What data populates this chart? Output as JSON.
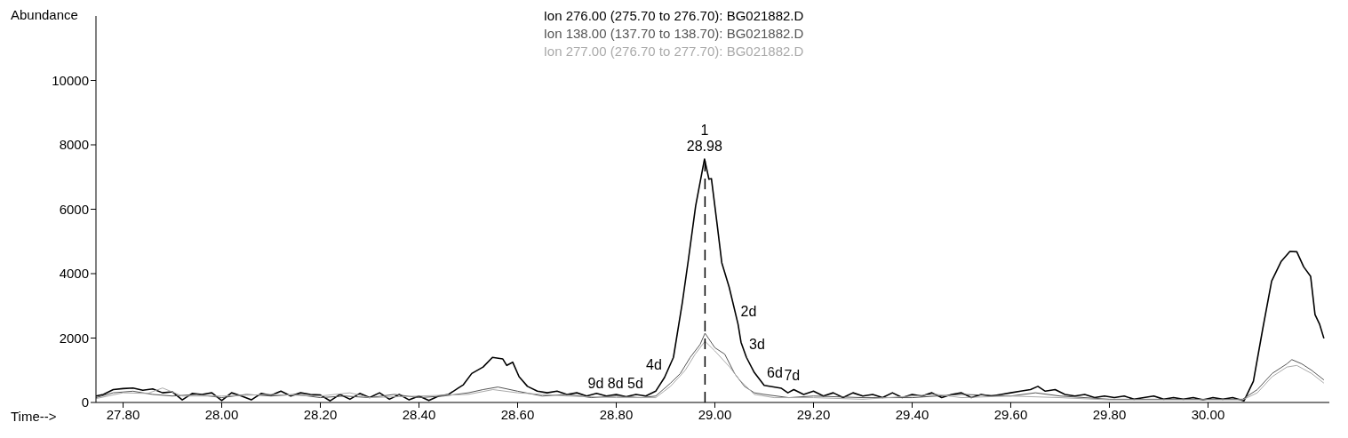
{
  "chart_data": {
    "type": "line",
    "ylabel": "Abundance",
    "xlabel": "Time-->",
    "xlim": [
      27.745,
      30.246
    ],
    "ylim": [
      0,
      12000
    ],
    "xticks": [
      {
        "value": 27.8,
        "label": "27.80"
      },
      {
        "value": 28,
        "label": "28.00"
      },
      {
        "value": 28.2,
        "label": "28.20"
      },
      {
        "value": 28.4,
        "label": "28.40"
      },
      {
        "value": 28.6,
        "label": "28.60"
      },
      {
        "value": 28.8,
        "label": "28.80"
      },
      {
        "value": 29,
        "label": "29.00"
      },
      {
        "value": 29.2,
        "label": "29.20"
      },
      {
        "value": 29.4,
        "label": "29.40"
      },
      {
        "value": 29.6,
        "label": "29.60"
      },
      {
        "value": 29.8,
        "label": "29.80"
      },
      {
        "value": 30,
        "label": "30.00"
      }
    ],
    "yticks": [
      0,
      2000,
      4000,
      6000,
      8000,
      10000
    ],
    "grid": false,
    "legend": "top",
    "marker": "none",
    "line_style": "solid",
    "series": [
      {
        "name": "Ion 276.00 (275.70 to 276.70): BG021882.D",
        "color": "#000000",
        "x": [
          27.745,
          27.76,
          27.78,
          27.8,
          27.82,
          27.84,
          27.86,
          27.88,
          27.9,
          27.92,
          27.94,
          27.96,
          27.98,
          28,
          28.02,
          28.04,
          28.06,
          28.08,
          28.1,
          28.12,
          28.14,
          28.16,
          28.18,
          28.2,
          28.22,
          28.24,
          28.26,
          28.28,
          28.3,
          28.32,
          28.34,
          28.36,
          28.38,
          28.4,
          28.42,
          28.44,
          28.46,
          28.48,
          28.49,
          28.507,
          28.53,
          28.549,
          28.57,
          28.578,
          28.59,
          28.603,
          28.62,
          28.64,
          28.66,
          28.68,
          28.7,
          28.72,
          28.74,
          28.76,
          28.78,
          28.8,
          28.82,
          28.84,
          28.86,
          28.88,
          28.898,
          28.916,
          28.934,
          28.946,
          28.961,
          28.979,
          28.988,
          28.993,
          29.005,
          29.014,
          29.029,
          29.047,
          29.053,
          29.064,
          29.08,
          29.1,
          29.135,
          29.148,
          29.16,
          29.18,
          29.2,
          29.22,
          29.24,
          29.26,
          29.28,
          29.3,
          29.32,
          29.34,
          29.36,
          29.38,
          29.4,
          29.42,
          29.44,
          29.46,
          29.48,
          29.5,
          29.52,
          29.54,
          29.56,
          29.58,
          29.6,
          29.62,
          29.64,
          29.655,
          29.67,
          29.69,
          29.71,
          29.73,
          29.75,
          29.77,
          29.79,
          29.81,
          29.83,
          29.85,
          29.87,
          29.89,
          29.91,
          29.93,
          29.95,
          29.97,
          29.99,
          30.01,
          30.03,
          30.05,
          30.073,
          30.092,
          30.111,
          30.129,
          30.148,
          30.166,
          30.18,
          30.194,
          30.208,
          30.217,
          30.226,
          30.235
        ],
        "values": [
          200,
          250,
          400,
          430,
          450,
          380,
          420,
          300,
          330,
          80,
          280,
          250,
          300,
          60,
          300,
          200,
          80,
          280,
          220,
          350,
          200,
          300,
          250,
          230,
          50,
          250,
          100,
          280,
          150,
          300,
          100,
          250,
          80,
          200,
          60,
          200,
          250,
          450,
          550,
          900,
          1100,
          1400,
          1350,
          1150,
          1250,
          800,
          500,
          350,
          300,
          350,
          250,
          300,
          200,
          280,
          200,
          250,
          180,
          250,
          200,
          350,
          780,
          1400,
          3100,
          4400,
          6100,
          7560,
          6930,
          6950,
          5480,
          4340,
          3580,
          2430,
          1870,
          1400,
          930,
          530,
          440,
          300,
          400,
          250,
          350,
          200,
          300,
          150,
          300,
          200,
          250,
          150,
          300,
          150,
          250,
          200,
          300,
          150,
          250,
          300,
          150,
          250,
          200,
          250,
          300,
          350,
          400,
          500,
          350,
          400,
          250,
          200,
          250,
          150,
          200,
          150,
          200,
          100,
          150,
          200,
          100,
          150,
          100,
          150,
          80,
          150,
          100,
          150,
          50,
          660,
          2290,
          3770,
          4370,
          4690,
          4680,
          4210,
          3920,
          2730,
          2440,
          1990
        ]
      },
      {
        "name": "Ion 138.00 (137.70 to 138.70): BG021882.D",
        "color": "#555555",
        "x": [
          27.745,
          27.78,
          27.82,
          27.86,
          27.9,
          27.95,
          28,
          28.05,
          28.1,
          28.15,
          28.2,
          28.25,
          28.3,
          28.35,
          28.4,
          28.45,
          28.5,
          28.53,
          28.56,
          28.6,
          28.65,
          28.7,
          28.75,
          28.8,
          28.85,
          28.88,
          28.91,
          28.93,
          28.95,
          28.97,
          28.98,
          29,
          29.02,
          29.04,
          29.06,
          29.08,
          29.1,
          29.15,
          29.2,
          29.3,
          29.4,
          29.5,
          29.6,
          29.65,
          29.7,
          29.8,
          29.9,
          30,
          30.07,
          30.1,
          30.13,
          30.16,
          30.17,
          30.19,
          30.21,
          30.235
        ],
        "values": [
          150,
          300,
          350,
          250,
          200,
          250,
          150,
          250,
          200,
          250,
          150,
          200,
          150,
          250,
          150,
          200,
          300,
          400,
          480,
          350,
          200,
          250,
          150,
          200,
          150,
          200,
          600,
          900,
          1400,
          1800,
          2150,
          1700,
          1500,
          900,
          500,
          300,
          250,
          150,
          200,
          150,
          150,
          250,
          200,
          300,
          200,
          100,
          100,
          100,
          100,
          400,
          900,
          1200,
          1330,
          1200,
          1000,
          700
        ]
      },
      {
        "name": "Ion 277.00 (276.70 to 277.70): BG021882.D",
        "color": "#aaaaaa",
        "x": [
          27.745,
          27.8,
          27.85,
          27.88,
          27.92,
          28,
          28.1,
          28.2,
          28.26,
          28.3,
          28.4,
          28.5,
          28.55,
          28.6,
          28.7,
          28.8,
          28.88,
          28.91,
          28.94,
          28.96,
          28.98,
          29,
          29.03,
          29.05,
          29.08,
          29.12,
          29.2,
          29.3,
          29.45,
          29.5,
          29.6,
          29.7,
          29.8,
          30,
          30.07,
          30.1,
          30.13,
          30.16,
          30.18,
          30.21,
          30.235
        ],
        "values": [
          120,
          300,
          280,
          450,
          200,
          200,
          250,
          200,
          300,
          150,
          200,
          250,
          400,
          300,
          200,
          150,
          150,
          500,
          1000,
          1500,
          1900,
          1600,
          1100,
          700,
          250,
          150,
          150,
          100,
          250,
          150,
          200,
          150,
          80,
          80,
          80,
          300,
          800,
          1100,
          1150,
          900,
          600
        ]
      }
    ],
    "ref_lines": [
      {
        "axis": "x",
        "value": 28.98,
        "label": null,
        "color": "#000000",
        "line_style": "dashed"
      }
    ],
    "annotations": [
      {
        "text": "1",
        "x": 28.979,
        "y": 7560
      },
      {
        "text": "28.98",
        "x": 28.979,
        "y": 7560
      },
      {
        "text": "2d",
        "x": 29.047,
        "y": 2430
      },
      {
        "text": "3d",
        "x": 29.064,
        "y": 1400
      },
      {
        "text": "6d",
        "x": 29.1,
        "y": 530
      },
      {
        "text": "7d",
        "x": 29.135,
        "y": 440
      },
      {
        "text": "9d",
        "x": 28.78,
        "y": 200
      },
      {
        "text": "8d",
        "x": 28.82,
        "y": 180
      },
      {
        "text": "5d",
        "x": 28.86,
        "y": 200
      },
      {
        "text": "4d",
        "x": 28.898,
        "y": 780
      }
    ]
  }
}
